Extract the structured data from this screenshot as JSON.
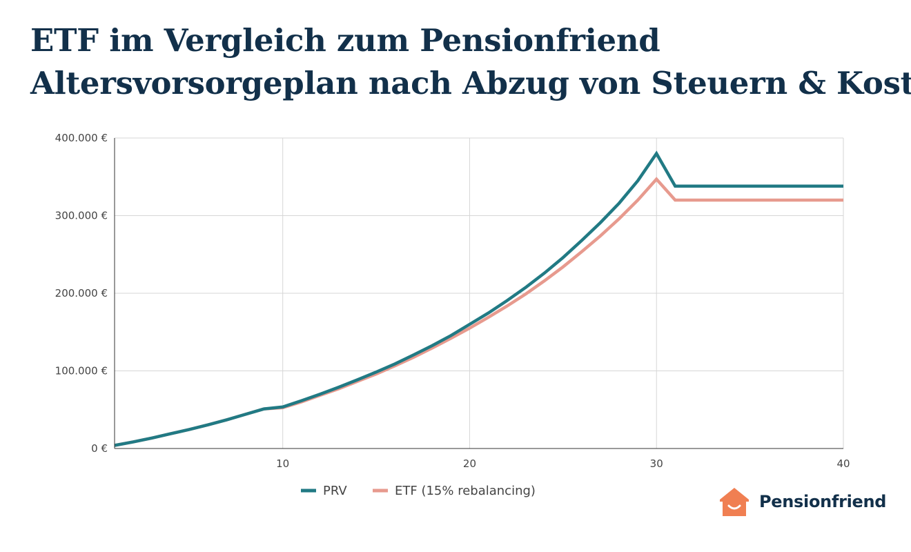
{
  "title": {
    "line1": "ETF im Vergleich zum Pensionfriend",
    "line2": "Altersvorsorgeplan nach Abzug von Steuern & Kosten"
  },
  "brand": {
    "name": "Pensionfriend",
    "icon": "house-smile-icon",
    "color": "#f07f52"
  },
  "chart_data": {
    "type": "line",
    "xlim": [
      1,
      40
    ],
    "ylim": [
      0,
      400000
    ],
    "x_ticks": [
      {
        "value": 10,
        "label": "10"
      },
      {
        "value": 20,
        "label": "20"
      },
      {
        "value": 30,
        "label": "30"
      },
      {
        "value": 40,
        "label": "40"
      }
    ],
    "y_ticks": [
      {
        "value": 0,
        "label": "0 €"
      },
      {
        "value": 100000,
        "label": "100.000 €"
      },
      {
        "value": 200000,
        "label": "200.000 €"
      },
      {
        "value": 300000,
        "label": "300.000 €"
      },
      {
        "value": 400000,
        "label": "400.000 €"
      }
    ],
    "grid": true,
    "legend_position": "bottom",
    "series": [
      {
        "name": "PRV",
        "color": "#217a84",
        "x": [
          1,
          2,
          3,
          4,
          5,
          6,
          7,
          8,
          9,
          10,
          11,
          12,
          13,
          14,
          15,
          16,
          17,
          18,
          19,
          20,
          21,
          22,
          23,
          24,
          25,
          26,
          27,
          28,
          29,
          30,
          31,
          32,
          33,
          34,
          35,
          36,
          37,
          38,
          39,
          40
        ],
        "values": [
          4000,
          8500,
          13500,
          19000,
          24500,
          30500,
          37000,
          44000,
          51000,
          53500,
          61500,
          70000,
          79000,
          88500,
          98500,
          109000,
          120500,
          132500,
          145500,
          160000,
          174500,
          190500,
          207500,
          226000,
          246000,
          268000,
          291000,
          316000,
          345000,
          380000,
          338000,
          338000,
          338000,
          338000,
          338000,
          338000,
          338000,
          338000,
          338000,
          338000
        ]
      },
      {
        "name": "ETF (15% rebalancing)",
        "color": "#e79a8e",
        "x": [
          1,
          2,
          3,
          4,
          5,
          6,
          7,
          8,
          9,
          10,
          11,
          12,
          13,
          14,
          15,
          16,
          17,
          18,
          19,
          20,
          21,
          22,
          23,
          24,
          25,
          26,
          27,
          28,
          29,
          30,
          31,
          32,
          33,
          34,
          35,
          36,
          37,
          38,
          39,
          40
        ],
        "values": [
          4000,
          8500,
          13500,
          19000,
          24500,
          30500,
          37000,
          44000,
          51000,
          52500,
          60000,
          68500,
          77000,
          86500,
          96000,
          106500,
          117500,
          129500,
          142000,
          155000,
          169000,
          183500,
          199000,
          216000,
          234000,
          253500,
          274000,
          296000,
          320000,
          347000,
          320000,
          320000,
          320000,
          320000,
          320000,
          320000,
          320000,
          320000,
          320000,
          320000
        ]
      }
    ]
  }
}
